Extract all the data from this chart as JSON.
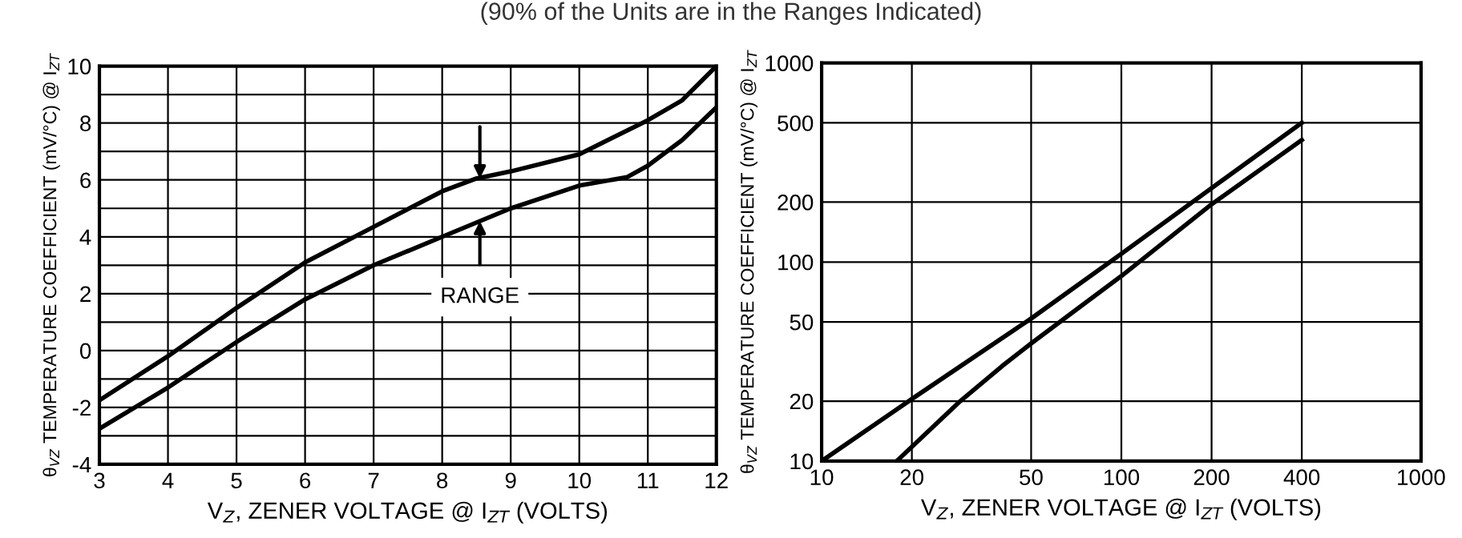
{
  "chart_data": [
    {
      "type": "line",
      "subtitle": "(90% of the Units are in the Ranges Indicated)",
      "xlabel": "V$_{Z}$, ZENER VOLTAGE @ I$_{ZT}$ (VOLTS)",
      "ylabel": "θ$_{VZ}$ TEMPERATURE COEFFICIENT (mV/°C) @ I$_{ZT}$",
      "series": [
        {
          "color": "#000000",
          "x": [
            3,
            4,
            5,
            6,
            7,
            8,
            8.5,
            9,
            10,
            11,
            11.5,
            12
          ],
          "values": [
            -1.75,
            -0.2,
            1.5,
            3.1,
            4.35,
            5.6,
            6.05,
            6.3,
            6.9,
            8.1,
            8.8,
            10
          ]
        },
        {
          "color": "#000000",
          "x": [
            3,
            4,
            5,
            6,
            7,
            8,
            8.5,
            9,
            10,
            10.7,
            11,
            11.5,
            12
          ],
          "values": [
            -2.75,
            -1.3,
            0.3,
            1.8,
            3.0,
            4.0,
            4.5,
            5.0,
            5.8,
            6.1,
            6.5,
            7.4,
            8.55
          ]
        }
      ],
      "annotations": [
        {
          "text": "RANGE",
          "x": 8.55,
          "y": 4.55
        }
      ],
      "xlim": [
        3,
        12
      ],
      "ylim": [
        -4,
        10
      ],
      "xticks": [
        3,
        4,
        5,
        6,
        7,
        8,
        9,
        10,
        11,
        12
      ],
      "yticks": [
        -4,
        {
          "value": -3,
          "label": null
        },
        -2,
        {
          "value": -1,
          "label": null
        },
        0,
        {
          "value": 1,
          "label": null
        },
        2,
        {
          "value": 3,
          "label": null
        },
        4,
        {
          "value": 5,
          "label": null
        },
        6,
        {
          "value": 7,
          "label": null
        },
        8,
        {
          "value": 9,
          "label": null
        },
        10
      ],
      "grid": true,
      "legend": false,
      "marker": "none",
      "line_style": "solid"
    },
    {
      "type": "line",
      "xlabel": "V$_{Z}$, ZENER VOLTAGE @ I$_{ZT}$ (VOLTS)",
      "ylabel": "θ$_{VZ}$ TEMPERATURE COEFFICIENT (mV/°C) @ I$_{ZT}$",
      "series": [
        {
          "color": "#000000",
          "x": [
            10,
            20,
            50,
            100,
            200,
            400
          ],
          "values": [
            10,
            20.5,
            52,
            110,
            235,
            500
          ]
        },
        {
          "color": "#000000",
          "x": [
            17.8,
            29,
            40,
            50,
            70,
            100,
            200,
            400
          ],
          "values": [
            10,
            20,
            30,
            39,
            57,
            85,
            195,
            410
          ]
        }
      ],
      "log": "xy",
      "xlim": [
        10,
        1000
      ],
      "ylim": [
        10,
        1000
      ],
      "xticks": [
        10,
        20,
        50,
        100,
        200,
        400,
        1000
      ],
      "yticks": [
        10,
        20,
        50,
        100,
        200,
        500,
        1000
      ],
      "grid": true,
      "legend": false,
      "marker": "none",
      "line_style": "solid"
    }
  ]
}
